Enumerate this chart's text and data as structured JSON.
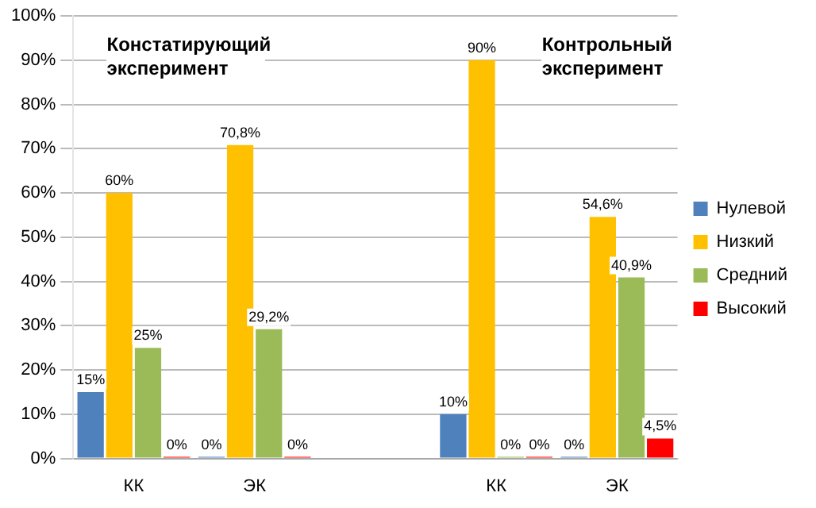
{
  "chart_data": {
    "type": "bar",
    "categories": [
      "КК",
      "ЭК",
      null,
      "КК",
      "ЭК"
    ],
    "series": [
      {
        "name": "Нулевой",
        "color": "#4f81bd",
        "values": [
          15,
          0,
          null,
          10,
          0
        ],
        "value_labels": [
          "15%",
          "0%",
          null,
          "10%",
          "0%"
        ]
      },
      {
        "name": "Низкий",
        "color": "#ffc000",
        "values": [
          60,
          70.8,
          null,
          90,
          54.6
        ],
        "value_labels": [
          "60%",
          "70,8%",
          null,
          "90%",
          "54,6%"
        ]
      },
      {
        "name": "Средний",
        "color": "#9bbb59",
        "values": [
          25,
          29.2,
          null,
          0,
          40.9
        ],
        "value_labels": [
          "25%",
          "29,2%",
          null,
          "0%",
          "40,9%"
        ]
      },
      {
        "name": "Высокий",
        "color": "#ff0000",
        "values": [
          0,
          0,
          null,
          0,
          4.5
        ],
        "value_labels": [
          "0%",
          "0%",
          null,
          "0%",
          "4,5%"
        ]
      }
    ],
    "ylim": [
      0,
      100
    ],
    "yticks": [
      {
        "value": 0,
        "label": "0%"
      },
      {
        "value": 10,
        "label": "10%"
      },
      {
        "value": 20,
        "label": "20%"
      },
      {
        "value": 30,
        "label": "30%"
      },
      {
        "value": 40,
        "label": "40%"
      },
      {
        "value": 50,
        "label": "50%"
      },
      {
        "value": 60,
        "label": "60%"
      },
      {
        "value": 70,
        "label": "70%"
      },
      {
        "value": 80,
        "label": "80%"
      },
      {
        "value": 90,
        "label": "90%"
      },
      {
        "value": 100,
        "label": "100%"
      }
    ],
    "grid": "y",
    "legend": "right",
    "annotations": [
      "Констатирующий эксперимент",
      "Контрольный эксперимент"
    ]
  }
}
